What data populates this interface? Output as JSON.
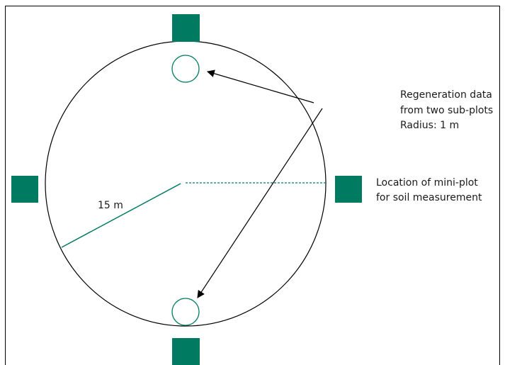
{
  "annotations": {
    "subplots": [
      "Regeneration data",
      "from two sub-plots",
      "Radius: 1 m"
    ],
    "miniplot": [
      "Location of mini-plot",
      "for soil measurement"
    ],
    "radius": "15 m"
  }
}
